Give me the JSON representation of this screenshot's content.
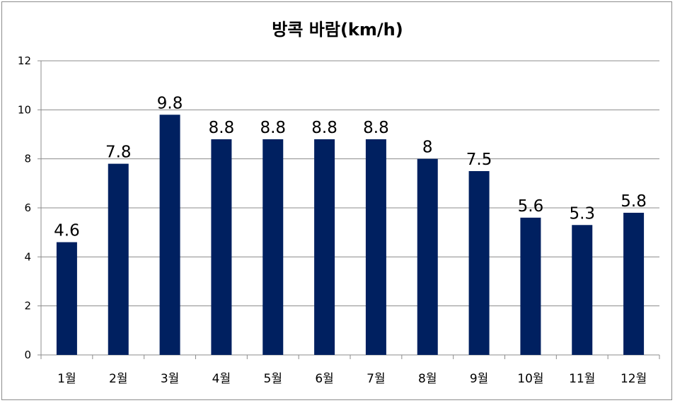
{
  "chart_data": {
    "type": "bar",
    "title": "방콕 바람(km/h)",
    "categories": [
      "1월",
      "2월",
      "3월",
      "4월",
      "5월",
      "6월",
      "7월",
      "8월",
      "9월",
      "10월",
      "11월",
      "12월"
    ],
    "values": [
      4.6,
      7.8,
      9.8,
      8.8,
      8.8,
      8.8,
      8.8,
      8,
      7.5,
      5.6,
      5.3,
      5.8
    ],
    "value_labels": [
      "4.6",
      "7.8",
      "9.8",
      "8.8",
      "8.8",
      "8.8",
      "8.8",
      "8",
      "7.5",
      "5.6",
      "5.3",
      "5.8"
    ],
    "y_ticks": [
      "0",
      "2",
      "4",
      "6",
      "8",
      "10",
      "12"
    ],
    "ylim": [
      0,
      12
    ],
    "xlabel": "",
    "ylabel": "",
    "grid": true,
    "legend": "none",
    "bar_color": "#002060",
    "grid_color": "#8c8c8c"
  }
}
